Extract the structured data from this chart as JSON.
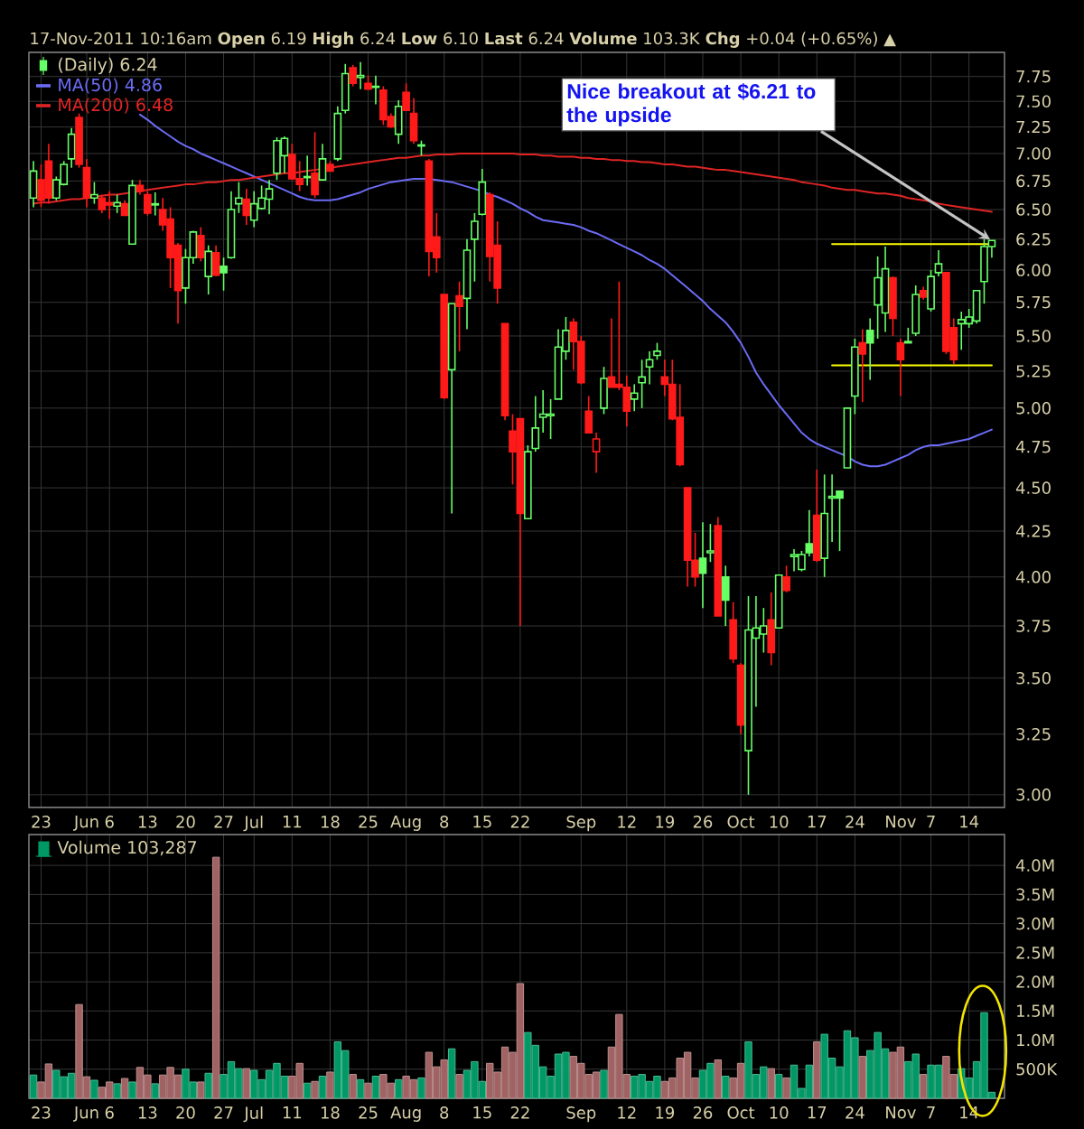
{
  "chart_data": [
    {
      "type": "candlestick",
      "subtitle": "17-Nov-2011 10:16am **Open** 6.19 **High** 6.24 **Low** 6.10 **Last** 6.24 **Volume** 103.3K **Chg** +0.04 (+0.65%) ▲",
      "categories": [
        null,
        "23",
        null,
        null,
        null,
        null,
        null,
        "Jun",
        null,
        null,
        "6",
        null,
        null,
        null,
        null,
        "13",
        null,
        null,
        null,
        null,
        "20",
        null,
        null,
        null,
        null,
        "27",
        null,
        null,
        null,
        "Jul",
        null,
        null,
        null,
        null,
        "11",
        null,
        null,
        null,
        null,
        "18",
        null,
        null,
        null,
        null,
        "25",
        null,
        null,
        null,
        null,
        "Aug",
        null,
        null,
        null,
        null,
        "8",
        null,
        null,
        null,
        null,
        "15",
        null,
        null,
        null,
        null,
        "22",
        null,
        null,
        null,
        null,
        null,
        null,
        null,
        "Sep",
        null,
        null,
        null,
        null,
        null,
        "12",
        null,
        null,
        null,
        null,
        "19",
        null,
        null,
        null,
        null,
        "26",
        null,
        null,
        null,
        null,
        "Oct",
        null,
        null,
        null,
        null,
        "10",
        null,
        null,
        null,
        null,
        "17",
        null,
        null,
        null,
        null,
        "24",
        null,
        null,
        null,
        null,
        null,
        "Nov",
        null,
        null,
        null,
        "7",
        null,
        null,
        null,
        null,
        "14",
        null,
        null,
        null
      ],
      "series": [
        {
          "name": "(Daily) 6.24",
          "ohlc": [
            [
              6.6,
              6.93,
              6.52,
              6.84
            ],
            [
              6.76,
              6.9,
              6.52,
              6.58
            ],
            [
              6.93,
              7.09,
              6.55,
              6.6
            ],
            [
              6.6,
              6.79,
              6.58,
              6.76
            ],
            [
              6.72,
              6.93,
              6.71,
              6.9
            ],
            [
              6.95,
              7.24,
              6.87,
              7.18
            ],
            [
              7.34,
              7.38,
              6.87,
              6.9
            ],
            [
              6.87,
              6.95,
              6.52,
              6.6
            ],
            [
              6.6,
              6.74,
              6.55,
              6.63
            ],
            [
              6.6,
              6.63,
              6.47,
              6.5
            ],
            [
              6.56,
              6.66,
              6.42,
              6.54
            ],
            [
              6.53,
              6.63,
              6.47,
              6.56
            ],
            [
              6.55,
              6.58,
              6.45,
              6.45
            ],
            [
              6.21,
              6.76,
              6.21,
              6.71
            ],
            [
              6.71,
              6.76,
              6.63,
              6.66
            ],
            [
              6.63,
              6.66,
              6.45,
              6.47
            ],
            [
              6.54,
              6.65,
              6.45,
              6.55
            ],
            [
              6.5,
              6.6,
              6.32,
              6.37
            ],
            [
              6.42,
              6.52,
              5.86,
              6.1
            ],
            [
              6.2,
              6.22,
              5.59,
              5.84
            ],
            [
              5.86,
              6.17,
              5.74,
              6.1
            ],
            [
              6.1,
              6.32,
              6.05,
              6.31
            ],
            [
              6.28,
              6.35,
              6.07,
              6.1
            ],
            [
              5.95,
              6.2,
              5.81,
              6.15
            ],
            [
              6.14,
              6.2,
              5.95,
              5.96
            ],
            [
              6.03,
              6.1,
              5.84,
              5.98
            ],
            [
              6.1,
              6.66,
              6.09,
              6.5
            ],
            [
              6.55,
              6.74,
              6.47,
              6.6
            ],
            [
              6.59,
              6.68,
              6.37,
              6.45
            ],
            [
              6.41,
              6.66,
              6.35,
              6.55
            ],
            [
              6.51,
              6.71,
              6.5,
              6.6
            ],
            [
              6.59,
              6.76,
              6.46,
              6.68
            ],
            [
              6.82,
              7.15,
              6.76,
              7.12
            ],
            [
              6.98,
              7.16,
              6.82,
              7.14
            ],
            [
              6.99,
              7.09,
              6.76,
              6.77
            ],
            [
              6.77,
              6.93,
              6.66,
              6.72
            ],
            [
              6.78,
              6.98,
              6.71,
              6.79
            ],
            [
              6.82,
              7.2,
              6.6,
              6.63
            ],
            [
              6.76,
              7.09,
              6.76,
              6.95
            ],
            [
              6.9,
              6.93,
              6.84,
              6.84
            ],
            [
              6.95,
              7.45,
              6.93,
              7.38
            ],
            [
              7.41,
              7.88,
              7.38,
              7.78
            ],
            [
              7.84,
              7.87,
              7.65,
              7.68
            ],
            [
              7.74,
              7.9,
              7.62,
              7.76
            ],
            [
              7.68,
              7.76,
              7.62,
              7.62
            ],
            [
              7.64,
              7.76,
              7.47,
              7.65
            ],
            [
              7.61,
              7.65,
              7.27,
              7.32
            ],
            [
              7.35,
              7.38,
              7.24,
              7.25
            ],
            [
              7.18,
              7.51,
              7.09,
              7.45
            ],
            [
              7.59,
              7.68,
              7.41,
              7.41
            ],
            [
              7.38,
              7.53,
              7.09,
              7.12
            ],
            [
              7.07,
              7.12,
              6.98,
              7.08
            ],
            [
              6.93,
              6.95,
              5.95,
              6.15
            ],
            [
              6.27,
              6.47,
              5.98,
              6.1
            ],
            [
              5.81,
              5.81,
              5.06,
              5.07
            ],
            [
              5.26,
              5.74,
              4.35,
              5.74
            ],
            [
              5.8,
              5.91,
              5.39,
              5.72
            ],
            [
              5.78,
              6.25,
              5.55,
              6.16
            ],
            [
              6.25,
              6.47,
              5.91,
              6.4
            ],
            [
              6.46,
              6.86,
              6.45,
              6.74
            ],
            [
              6.63,
              6.65,
              5.91,
              6.11
            ],
            [
              6.2,
              6.4,
              5.74,
              5.86
            ],
            [
              5.59,
              5.59,
              4.92,
              4.95
            ],
            [
              4.85,
              4.96,
              4.52,
              4.72
            ],
            [
              4.93,
              4.93,
              3.75,
              4.35
            ],
            [
              4.32,
              4.76,
              4.32,
              4.72
            ],
            [
              4.74,
              5.08,
              4.72,
              4.87
            ],
            [
              4.94,
              5.12,
              4.84,
              4.96
            ],
            [
              4.95,
              5.06,
              4.8,
              4.96
            ],
            [
              5.06,
              5.55,
              5.06,
              5.42
            ],
            [
              5.39,
              5.64,
              5.33,
              5.54
            ],
            [
              5.6,
              5.63,
              5.26,
              5.46
            ],
            [
              5.46,
              5.5,
              5.16,
              5.17
            ],
            [
              4.98,
              5.08,
              4.84,
              4.84
            ],
            [
              4.72,
              4.84,
              4.59,
              4.8
            ],
            [
              5.0,
              5.28,
              4.96,
              5.2
            ],
            [
              5.21,
              5.63,
              5.14,
              5.14
            ],
            [
              5.16,
              5.91,
              5.12,
              5.14
            ],
            [
              5.14,
              5.22,
              4.88,
              4.98
            ],
            [
              5.06,
              5.16,
              4.98,
              5.1
            ],
            [
              5.17,
              5.33,
              5.0,
              5.21
            ],
            [
              5.28,
              5.39,
              5.16,
              5.33
            ],
            [
              5.36,
              5.45,
              5.33,
              5.39
            ],
            [
              5.21,
              5.33,
              5.08,
              5.16
            ],
            [
              5.16,
              5.33,
              4.92,
              4.93
            ],
            [
              4.94,
              5.16,
              4.63,
              4.64
            ],
            [
              4.5,
              4.5,
              3.95,
              4.09
            ],
            [
              4.09,
              4.24,
              3.95,
              4.0
            ],
            [
              4.1,
              4.3,
              3.84,
              4.02
            ],
            [
              4.13,
              4.29,
              4.08,
              4.14
            ],
            [
              4.28,
              4.33,
              3.8,
              3.8
            ],
            [
              4.0,
              4.06,
              3.75,
              3.88
            ],
            [
              3.78,
              3.87,
              3.57,
              3.59
            ],
            [
              3.56,
              3.57,
              3.25,
              3.29
            ],
            [
              3.18,
              3.9,
              3.0,
              3.73
            ],
            [
              3.69,
              3.9,
              3.37,
              3.74
            ],
            [
              3.71,
              3.84,
              3.62,
              3.75
            ],
            [
              3.78,
              3.92,
              3.56,
              3.62
            ],
            [
              3.74,
              4.01,
              3.74,
              4.01
            ],
            [
              4.0,
              4.06,
              3.92,
              3.93
            ],
            [
              4.11,
              4.15,
              4.03,
              4.12
            ],
            [
              4.04,
              4.14,
              4.03,
              4.12
            ],
            [
              4.18,
              4.37,
              4.11,
              4.13
            ],
            [
              4.34,
              4.61,
              4.08,
              4.09
            ],
            [
              4.1,
              4.58,
              4.0,
              4.35
            ],
            [
              4.44,
              4.58,
              4.19,
              4.45
            ],
            [
              4.48,
              4.48,
              4.14,
              4.44
            ],
            [
              4.62,
              5.0,
              4.62,
              5.0
            ],
            [
              5.08,
              5.48,
              4.96,
              5.42
            ],
            [
              5.45,
              5.55,
              5.04,
              5.37
            ],
            [
              5.54,
              5.63,
              5.19,
              5.45
            ],
            [
              5.73,
              6.11,
              5.48,
              5.94
            ],
            [
              5.67,
              6.19,
              5.53,
              6.01
            ],
            [
              5.94,
              5.95,
              5.5,
              5.63
            ],
            [
              5.45,
              5.48,
              5.08,
              5.33
            ],
            [
              5.45,
              5.56,
              5.45,
              5.46
            ],
            [
              5.52,
              5.88,
              5.5,
              5.81
            ],
            [
              5.84,
              5.87,
              5.77,
              5.79
            ],
            [
              5.7,
              6.0,
              5.68,
              5.95
            ],
            [
              5.98,
              6.16,
              5.95,
              6.05
            ],
            [
              5.98,
              5.98,
              5.37,
              5.39
            ],
            [
              5.56,
              5.63,
              5.3,
              5.33
            ],
            [
              5.59,
              5.68,
              5.4,
              5.62
            ],
            [
              5.59,
              5.7,
              5.56,
              5.64
            ],
            [
              5.61,
              5.84,
              5.59,
              5.84
            ],
            [
              5.91,
              6.25,
              5.74,
              6.19
            ],
            [
              6.19,
              6.24,
              6.1,
              6.24
            ]
          ],
          "colors": [
            "#66ff66",
            "#ff1a1a",
            "#ff1a1a",
            "#66ff66",
            "#66ff66",
            "#66ff66",
            "#ff1a1a",
            "#ff1a1a",
            "#66ff66",
            "#ff1a1a",
            "#ff1a1a",
            "#66ff66",
            "#ff1a1a",
            "#66ff66",
            "#ff1a1a",
            "#ff1a1a",
            "#66ff66",
            "#ff1a1a",
            "#ff1a1a",
            "#ff1a1a",
            "#66ff66",
            "#66ff66",
            "#ff1a1a",
            "#66ff66",
            "#ff1a1a",
            "#66ff66",
            "#66ff66",
            "#66ff66",
            "#ff1a1a",
            "#66ff66",
            "#66ff66",
            "#66ff66",
            "#66ff66",
            "#66ff66",
            "#ff1a1a",
            "#ff1a1a",
            "#66ff66",
            "#ff1a1a",
            "#66ff66",
            "#ff1a1a",
            "#66ff66",
            "#66ff66",
            "#ff1a1a",
            "#66ff66",
            "#ff1a1a",
            "#66ff66",
            "#ff1a1a",
            "#ff1a1a",
            "#66ff66",
            "#ff1a1a",
            "#ff1a1a",
            "#66ff66",
            "#ff1a1a",
            "#ff1a1a",
            "#ff1a1a",
            "#66ff66",
            "#ff1a1a",
            "#66ff66",
            "#66ff66",
            "#66ff66",
            "#ff1a1a",
            "#ff1a1a",
            "#ff1a1a",
            "#ff1a1a",
            "#ff1a1a",
            "#66ff66",
            "#66ff66",
            "#66ff66",
            "#66ff66",
            "#66ff66",
            "#66ff66",
            "#ff1a1a",
            "#ff1a1a",
            "#ff1a1a",
            "#ff1a1a",
            "#66ff66",
            "#ff1a1a",
            "#ff1a1a",
            "#ff1a1a",
            "#66ff66",
            "#66ff66",
            "#66ff66",
            "#66ff66",
            "#ff1a1a",
            "#ff1a1a",
            "#ff1a1a",
            "#ff1a1a",
            "#ff1a1a",
            "#66ff66",
            "#66ff66",
            "#ff1a1a",
            "#66ff66",
            "#ff1a1a",
            "#ff1a1a",
            "#66ff66",
            "#66ff66",
            "#66ff66",
            "#ff1a1a",
            "#66ff66",
            "#ff1a1a",
            "#66ff66",
            "#66ff66",
            "#66ff66",
            "#ff1a1a",
            "#66ff66",
            "#66ff66",
            "#66ff66",
            "#66ff66",
            "#66ff66",
            "#ff1a1a",
            "#66ff66",
            "#66ff66",
            "#66ff66",
            "#ff1a1a",
            "#ff1a1a",
            "#66ff66",
            "#66ff66",
            "#ff1a1a",
            "#66ff66",
            "#66ff66",
            "#ff1a1a",
            "#ff1a1a",
            "#66ff66",
            "#66ff66",
            "#66ff66",
            "#66ff66",
            "#66ff66"
          ]
        },
        {
          "type": "line",
          "name": "MA(50) 4.86",
          "color": "#6b6bf5",
          "values": [
            null,
            null,
            null,
            null,
            null,
            null,
            null,
            null,
            null,
            null,
            null,
            null,
            null,
            null,
            7.37,
            7.32,
            7.26,
            7.21,
            7.16,
            7.11,
            7.07,
            7.04,
            7.0,
            6.97,
            6.94,
            6.91,
            6.88,
            6.85,
            6.82,
            6.79,
            6.76,
            6.73,
            6.7,
            6.67,
            6.64,
            6.61,
            6.59,
            6.58,
            6.58,
            6.58,
            6.59,
            6.61,
            6.63,
            6.65,
            6.68,
            6.7,
            6.72,
            6.74,
            6.75,
            6.76,
            6.77,
            6.77,
            6.77,
            6.76,
            6.75,
            6.74,
            6.72,
            6.7,
            6.68,
            6.66,
            6.63,
            6.61,
            6.58,
            6.55,
            6.51,
            6.48,
            6.44,
            6.41,
            6.4,
            6.39,
            6.38,
            6.37,
            6.35,
            6.32,
            6.3,
            6.27,
            6.24,
            6.21,
            6.18,
            6.15,
            6.12,
            6.08,
            6.05,
            6.01,
            5.96,
            5.91,
            5.86,
            5.81,
            5.76,
            5.7,
            5.65,
            5.6,
            5.53,
            5.45,
            5.35,
            5.24,
            5.16,
            5.09,
            5.02,
            4.96,
            4.9,
            4.84,
            4.8,
            4.77,
            4.75,
            4.73,
            4.71,
            4.69,
            4.66,
            4.64,
            4.63,
            4.63,
            4.64,
            4.66,
            4.68,
            4.7,
            4.73,
            4.75,
            4.76,
            4.76,
            4.77,
            4.78,
            4.79,
            4.8,
            4.82,
            4.84,
            4.86
          ]
        },
        {
          "type": "line",
          "name": "MA(200) 6.48",
          "color": "#e02424",
          "values": [
            6.55,
            6.56,
            6.56,
            6.57,
            6.58,
            6.59,
            6.59,
            6.6,
            6.61,
            6.62,
            6.63,
            6.63,
            6.64,
            6.65,
            6.66,
            6.67,
            6.68,
            6.69,
            6.7,
            6.71,
            6.72,
            6.72,
            6.73,
            6.74,
            6.74,
            6.75,
            6.76,
            6.76,
            6.77,
            6.78,
            6.79,
            6.8,
            6.81,
            6.82,
            6.82,
            6.83,
            6.84,
            6.85,
            6.86,
            6.87,
            6.88,
            6.89,
            6.9,
            6.91,
            6.92,
            6.93,
            6.94,
            6.95,
            6.96,
            6.96,
            6.97,
            6.98,
            6.98,
            6.99,
            6.99,
            6.99,
            7.0,
            7.0,
            7.0,
            7.0,
            7.0,
            7.0,
            7.0,
            7.0,
            6.99,
            6.99,
            6.99,
            6.98,
            6.98,
            6.97,
            6.97,
            6.97,
            6.96,
            6.96,
            6.95,
            6.95,
            6.94,
            6.94,
            6.93,
            6.93,
            6.92,
            6.92,
            6.91,
            6.9,
            6.9,
            6.89,
            6.88,
            6.88,
            6.87,
            6.86,
            6.85,
            6.85,
            6.84,
            6.83,
            6.82,
            6.81,
            6.8,
            6.79,
            6.78,
            6.77,
            6.76,
            6.74,
            6.73,
            6.72,
            6.71,
            6.69,
            6.68,
            6.67,
            6.67,
            6.66,
            6.65,
            6.64,
            6.64,
            6.63,
            6.62,
            6.6,
            6.59,
            6.58,
            6.57,
            6.55,
            6.54,
            6.53,
            6.52,
            6.51,
            6.5,
            6.49,
            6.48
          ]
        },
        {
          "type": "line",
          "color": "#ffff00",
          "values": [
            null,
            null,
            null,
            null,
            null,
            null,
            null,
            null,
            null,
            null,
            null,
            null,
            null,
            null,
            null,
            null,
            null,
            null,
            null,
            null,
            null,
            null,
            null,
            null,
            null,
            null,
            null,
            null,
            null,
            null,
            null,
            null,
            null,
            null,
            null,
            null,
            null,
            null,
            null,
            null,
            null,
            null,
            null,
            null,
            null,
            null,
            null,
            null,
            null,
            null,
            null,
            null,
            null,
            null,
            null,
            null,
            null,
            null,
            null,
            null,
            null,
            null,
            null,
            null,
            null,
            null,
            null,
            null,
            null,
            null,
            null,
            null,
            null,
            null,
            null,
            null,
            null,
            null,
            null,
            null,
            null,
            null,
            null,
            null,
            null,
            null,
            null,
            null,
            null,
            null,
            null,
            null,
            null,
            null,
            null,
            null,
            null,
            null,
            null,
            null,
            null,
            null,
            null,
            null,
            null,
            6.21,
            6.21,
            6.21,
            6.21,
            6.21,
            6.21,
            6.21,
            6.21,
            6.21,
            6.21,
            6.21,
            6.21,
            6.21,
            6.21,
            6.21,
            6.21,
            6.21,
            6.21,
            6.21,
            6.21,
            6.21,
            6.21
          ]
        },
        {
          "type": "line",
          "color": "#ffff00",
          "values": [
            null,
            null,
            null,
            null,
            null,
            null,
            null,
            null,
            null,
            null,
            null,
            null,
            null,
            null,
            null,
            null,
            null,
            null,
            null,
            null,
            null,
            null,
            null,
            null,
            null,
            null,
            null,
            null,
            null,
            null,
            null,
            null,
            null,
            null,
            null,
            null,
            null,
            null,
            null,
            null,
            null,
            null,
            null,
            null,
            null,
            null,
            null,
            null,
            null,
            null,
            null,
            null,
            null,
            null,
            null,
            null,
            null,
            null,
            null,
            null,
            null,
            null,
            null,
            null,
            null,
            null,
            null,
            null,
            null,
            null,
            null,
            null,
            null,
            null,
            null,
            null,
            null,
            null,
            null,
            null,
            null,
            null,
            null,
            null,
            null,
            null,
            null,
            null,
            null,
            null,
            null,
            null,
            null,
            null,
            null,
            null,
            null,
            null,
            null,
            null,
            null,
            null,
            null,
            null,
            null,
            5.29,
            5.29,
            5.29,
            5.29,
            5.29,
            5.29,
            5.29,
            5.29,
            5.29,
            5.29,
            5.29,
            5.29,
            5.29,
            5.29,
            5.29,
            5.29,
            5.29,
            5.29,
            5.29,
            5.29,
            5.29,
            5.29
          ]
        }
      ],
      "ylim": [
        2.95,
        8.0
      ],
      "yticks": [
        {
          "value": 3,
          "label": "3.00"
        },
        3.25,
        {
          "value": 3.5,
          "label": "3.50"
        },
        3.75,
        {
          "value": 4,
          "label": "4.00"
        },
        4.25,
        {
          "value": 4.5,
          "label": "4.50"
        },
        4.75,
        {
          "value": 5,
          "label": "5.00"
        },
        5.25,
        {
          "value": 5.5,
          "label": "5.50"
        },
        5.75,
        {
          "value": 6,
          "label": "6.00"
        },
        6.25,
        {
          "value": 6.5,
          "label": "6.50"
        },
        6.75,
        {
          "value": 7,
          "label": "7.00"
        },
        7.25,
        {
          "value": 7.5,
          "label": "7.50"
        },
        7.75
      ],
      "log": true,
      "grid": true,
      "legend": "top left",
      "annotations": [
        "Nice breakout at $6.21 to the upside"
      ]
    },
    {
      "type": "bar",
      "categories": [
        null,
        "23",
        null,
        null,
        null,
        null,
        null,
        "Jun",
        null,
        null,
        "6",
        null,
        null,
        null,
        null,
        "13",
        null,
        null,
        null,
        null,
        "20",
        null,
        null,
        null,
        null,
        "27",
        null,
        null,
        null,
        "Jul",
        null,
        null,
        null,
        null,
        "11",
        null,
        null,
        null,
        null,
        "18",
        null,
        null,
        null,
        null,
        "25",
        null,
        null,
        null,
        null,
        "Aug",
        null,
        null,
        null,
        null,
        "8",
        null,
        null,
        null,
        null,
        "15",
        null,
        null,
        null,
        null,
        "22",
        null,
        null,
        null,
        null,
        null,
        null,
        null,
        "Sep",
        null,
        null,
        null,
        null,
        null,
        "12",
        null,
        null,
        null,
        null,
        "19",
        null,
        null,
        null,
        null,
        "26",
        null,
        null,
        null,
        null,
        "Oct",
        null,
        null,
        null,
        null,
        "10",
        null,
        null,
        null,
        null,
        "17",
        null,
        null,
        null,
        null,
        "24",
        null,
        null,
        null,
        null,
        null,
        "Nov",
        null,
        null,
        null,
        "7",
        null,
        null,
        null,
        null,
        "14",
        null,
        null,
        null
      ],
      "series": [
        {
          "name": "Volume 103,287",
          "values": [
            400000,
            280000,
            590000,
            480000,
            370000,
            430000,
            1610000,
            370000,
            310000,
            190000,
            280000,
            250000,
            340000,
            280000,
            530000,
            400000,
            250000,
            400000,
            530000,
            400000,
            500000,
            280000,
            280000,
            430000,
            4140000,
            410000,
            630000,
            510000,
            510000,
            480000,
            320000,
            480000,
            600000,
            380000,
            380000,
            600000,
            260000,
            290000,
            380000,
            450000,
            970000,
            820000,
            410000,
            320000,
            260000,
            380000,
            410000,
            260000,
            320000,
            380000,
            320000,
            350000,
            790000,
            540000,
            660000,
            850000,
            410000,
            480000,
            630000,
            290000,
            600000,
            450000,
            880000,
            790000,
            1970000,
            1130000,
            910000,
            540000,
            380000,
            760000,
            790000,
            720000,
            600000,
            410000,
            450000,
            480000,
            880000,
            1440000,
            410000,
            380000,
            410000,
            290000,
            380000,
            290000,
            350000,
            690000,
            790000,
            350000,
            480000,
            600000,
            660000,
            380000,
            350000,
            600000,
            970000,
            410000,
            540000,
            510000,
            410000,
            350000,
            570000,
            170000,
            570000,
            970000,
            1100000,
            690000,
            540000,
            1160000,
            1040000,
            720000,
            820000,
            1130000,
            850000,
            790000,
            880000,
            630000,
            760000,
            410000,
            570000,
            570000,
            720000,
            410000,
            510000,
            350000,
            630000,
            1470000,
            103287
          ],
          "colors": [
            "#009966",
            "#a06262",
            "#a06262",
            "#009966",
            "#009966",
            "#009966",
            "#a06262",
            "#a06262",
            "#009966",
            "#a06262",
            "#a06262",
            "#009966",
            "#a06262",
            "#009966",
            "#a06262",
            "#a06262",
            "#009966",
            "#a06262",
            "#a06262",
            "#a06262",
            "#009966",
            "#009966",
            "#a06262",
            "#009966",
            "#a06262",
            "#009966",
            "#009966",
            "#009966",
            "#a06262",
            "#009966",
            "#009966",
            "#009966",
            "#009966",
            "#009966",
            "#a06262",
            "#a06262",
            "#009966",
            "#a06262",
            "#009966",
            "#a06262",
            "#009966",
            "#009966",
            "#a06262",
            "#009966",
            "#a06262",
            "#009966",
            "#a06262",
            "#a06262",
            "#009966",
            "#a06262",
            "#a06262",
            "#009966",
            "#a06262",
            "#a06262",
            "#a06262",
            "#009966",
            "#a06262",
            "#009966",
            "#009966",
            "#009966",
            "#a06262",
            "#a06262",
            "#a06262",
            "#a06262",
            "#a06262",
            "#009966",
            "#009966",
            "#009966",
            "#009966",
            "#009966",
            "#009966",
            "#a06262",
            "#a06262",
            "#a06262",
            "#a06262",
            "#009966",
            "#a06262",
            "#a06262",
            "#a06262",
            "#009966",
            "#009966",
            "#009966",
            "#009966",
            "#a06262",
            "#a06262",
            "#a06262",
            "#a06262",
            "#a06262",
            "#009966",
            "#009966",
            "#a06262",
            "#009966",
            "#a06262",
            "#a06262",
            "#009966",
            "#009966",
            "#009966",
            "#a06262",
            "#009966",
            "#a06262",
            "#009966",
            "#009966",
            "#009966",
            "#a06262",
            "#009966",
            "#009966",
            "#009966",
            "#009966",
            "#009966",
            "#a06262",
            "#009966",
            "#009966",
            "#009966",
            "#a06262",
            "#a06262",
            "#009966",
            "#009966",
            "#a06262",
            "#009966",
            "#009966",
            "#a06262",
            "#a06262",
            "#009966",
            "#009966",
            "#009966",
            "#009966",
            "#009966"
          ]
        }
      ],
      "ylim": [
        0,
        4530000
      ],
      "yticks": [
        {
          "value": 500000,
          "label": "500K"
        },
        {
          "value": 1000000,
          "label": "1.0M"
        },
        {
          "value": 1500000,
          "label": "1.5M"
        },
        {
          "value": 2000000,
          "label": "2.0M"
        },
        {
          "value": 2500000,
          "label": "2.5M"
        },
        {
          "value": 3000000,
          "label": "3.0M"
        },
        {
          "value": 3500000,
          "label": "3.5M"
        },
        {
          "value": 4000000,
          "label": "4.0M"
        }
      ],
      "grid": true,
      "legend": "top left"
    }
  ]
}
